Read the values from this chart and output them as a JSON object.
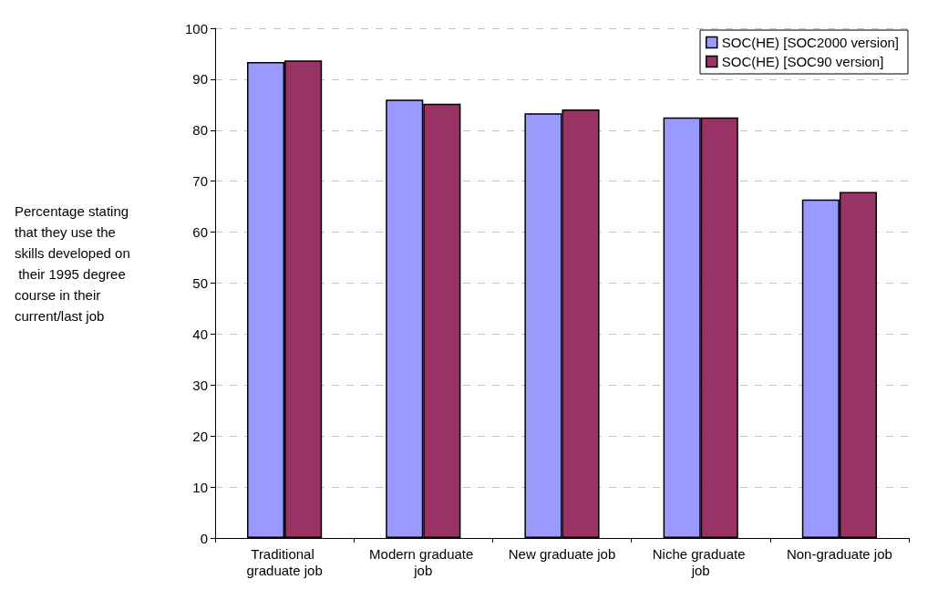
{
  "chart_data": {
    "type": "bar",
    "ylabel": "Percentage stating that they use the skills developed on their 1995 degree course in their current/last job",
    "categories": [
      "Traditional graduate job",
      "Modern graduate job",
      "New graduate job",
      "Niche graduate job",
      "Non-graduate job"
    ],
    "series": [
      {
        "name": "SOC(HE) [SOC2000 version]",
        "color": "#9999ff",
        "values": [
          93.4,
          86.0,
          83.3,
          82.5,
          66.4
        ]
      },
      {
        "name": "SOC(HE) [SOC90 version]",
        "color": "#993366",
        "values": [
          93.7,
          85.2,
          84.1,
          82.5,
          67.9
        ]
      }
    ],
    "ylim": [
      0,
      100
    ],
    "yticks": [
      0,
      10,
      20,
      30,
      40,
      50,
      60,
      70,
      80,
      90,
      100
    ],
    "grid": "y",
    "legend": "top right"
  }
}
